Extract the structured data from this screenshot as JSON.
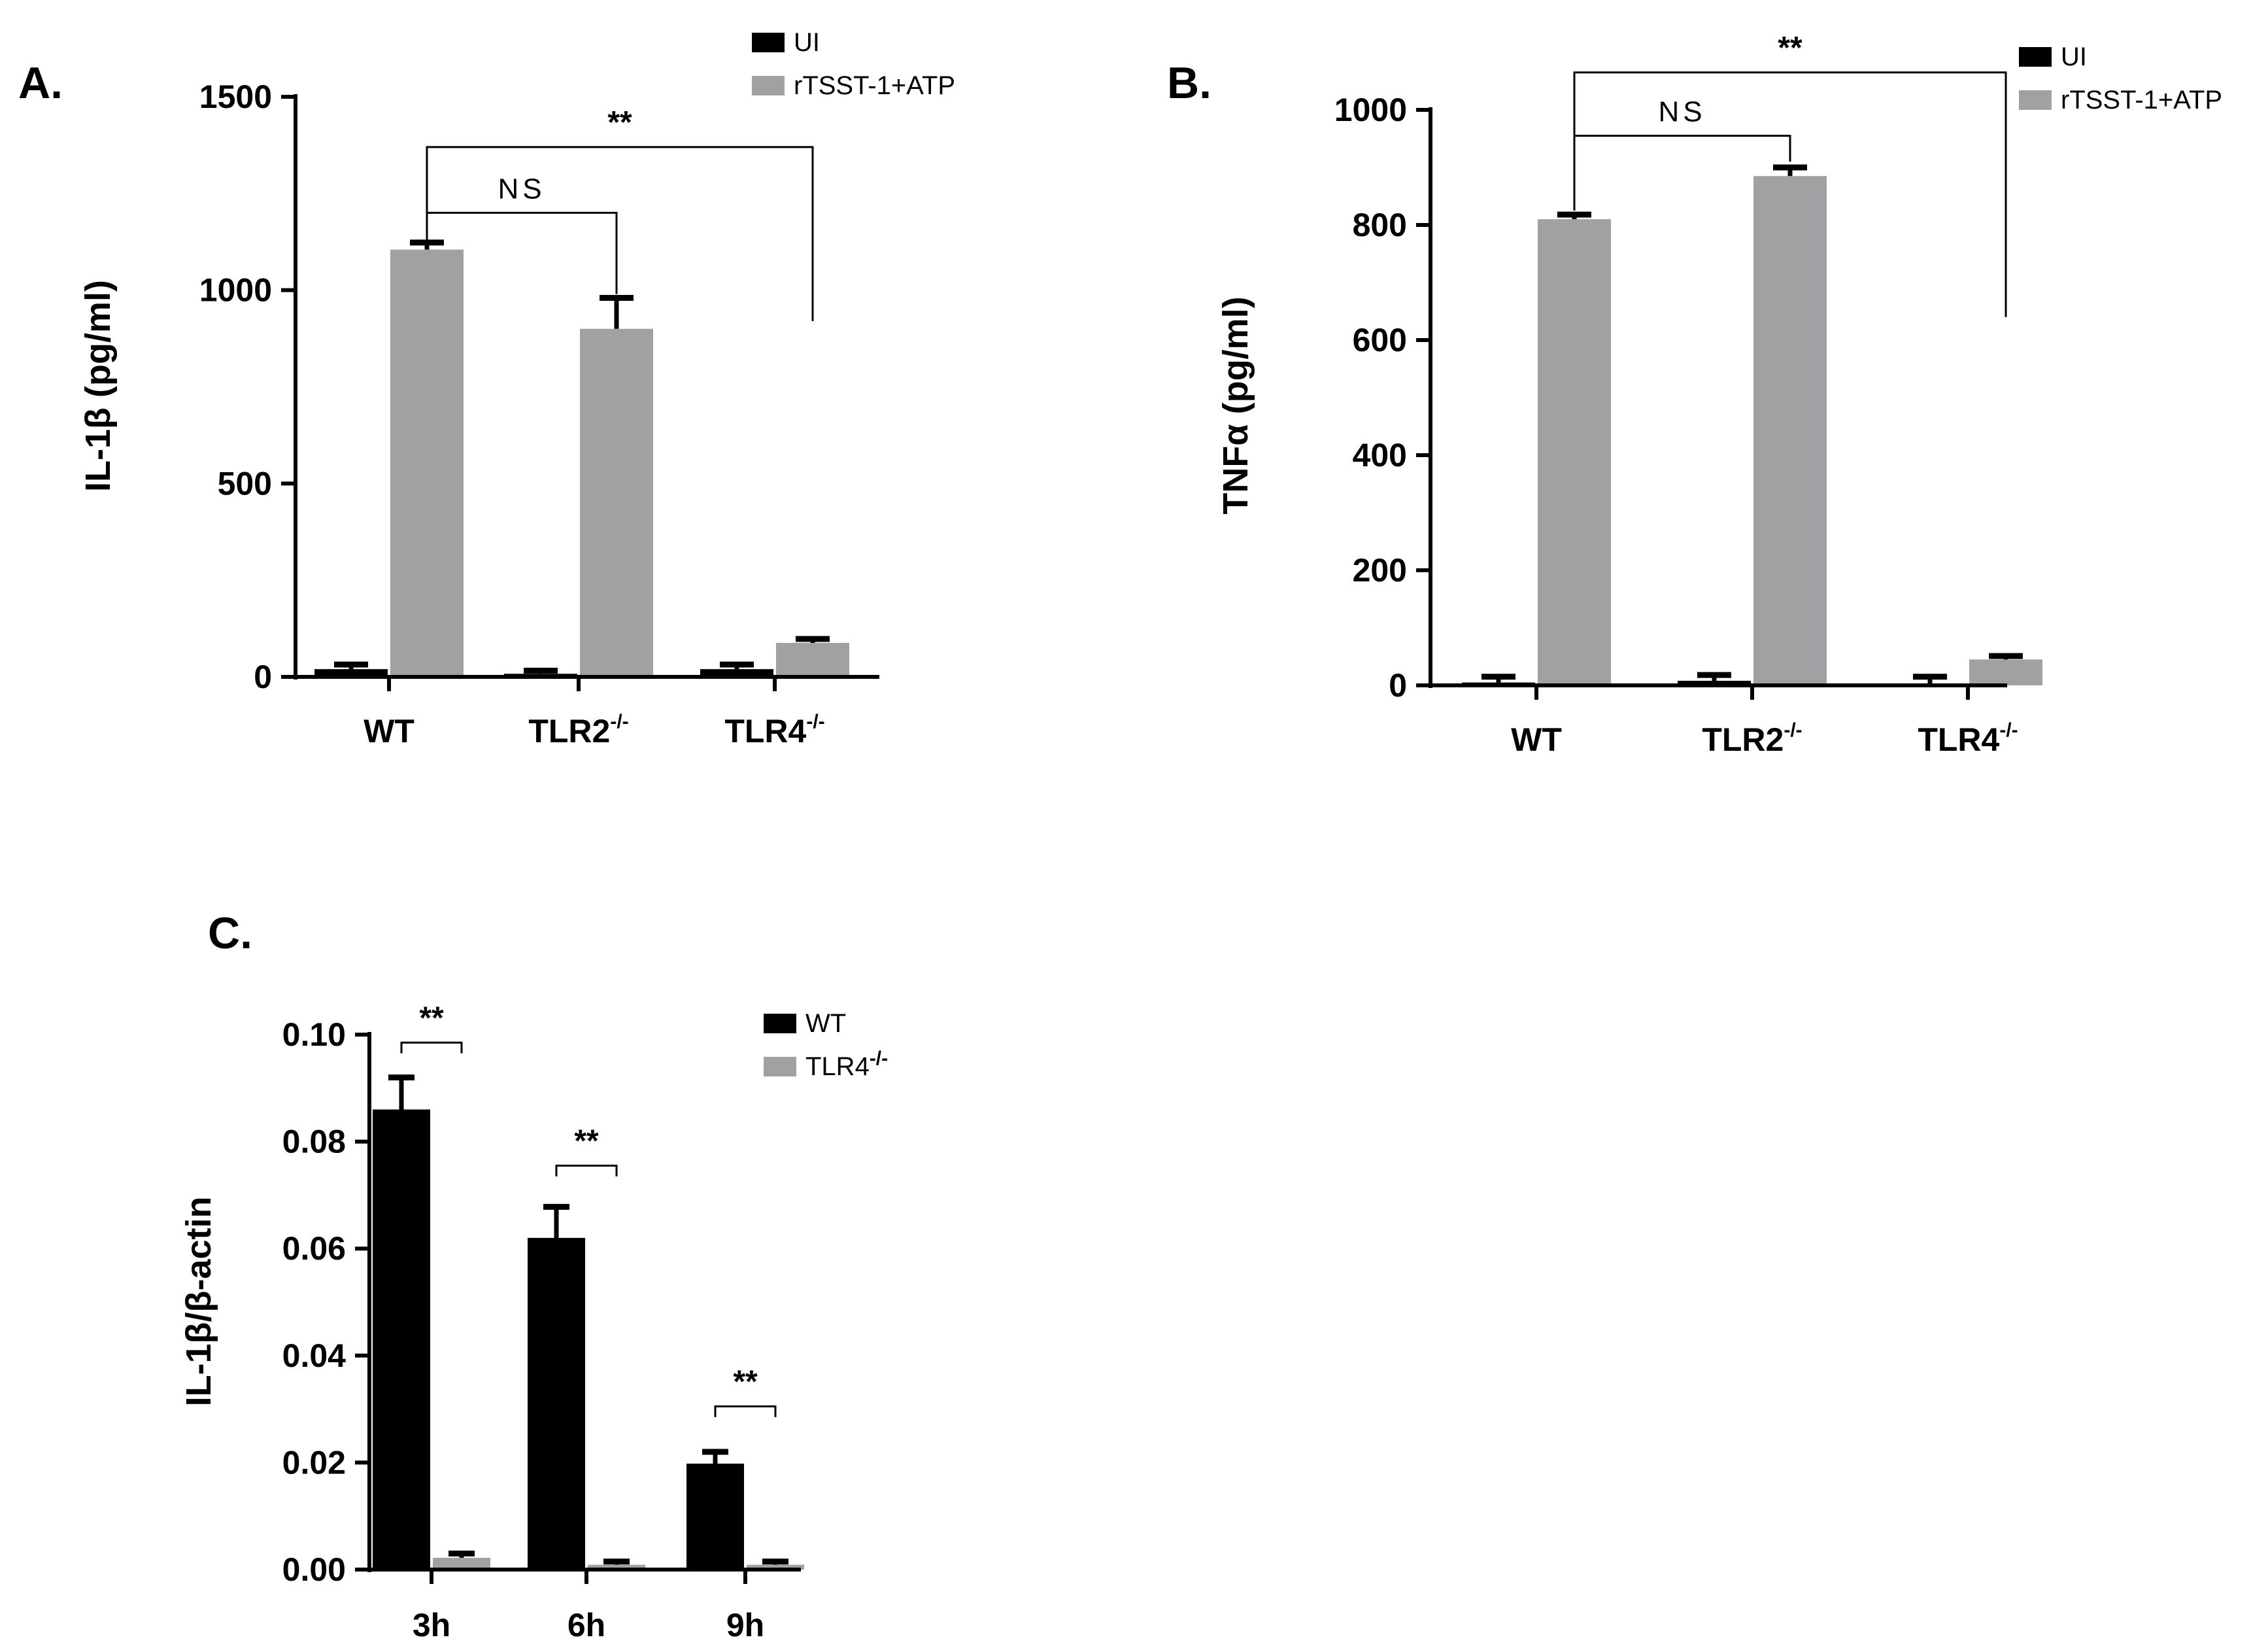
{
  "chart_data": [
    {
      "panel": "A.",
      "type": "bar",
      "ylabel": "IL-1β (pg/ml)",
      "ylim": [
        0,
        1500
      ],
      "yticks": [
        0,
        500,
        1000,
        1500
      ],
      "categories": [
        {
          "base": "WT",
          "sup": ""
        },
        {
          "base": "TLR2",
          "sup": "-/-"
        },
        {
          "base": "TLR4",
          "sup": "-/-"
        }
      ],
      "series": [
        {
          "name": "UI",
          "color": "#000000",
          "values": [
            20,
            8,
            20
          ],
          "errors": [
            12,
            8,
            12
          ]
        },
        {
          "name": "rTSST-1+ATP",
          "color": "#a1a1a4",
          "values": [
            1105,
            900,
            88
          ],
          "errors": [
            18,
            80,
            10
          ]
        }
      ],
      "brackets": [
        {
          "label": "NS",
          "from": [
            0,
            1
          ],
          "to": [
            1,
            1
          ],
          "y": 1200,
          "drop_to": [
            1125,
            990
          ]
        },
        {
          "label": "**",
          "from": [
            0,
            1
          ],
          "to": [
            2,
            1
          ],
          "y": 1370,
          "drop_to": [
            1125,
            920
          ]
        }
      ]
    },
    {
      "panel": "B.",
      "type": "bar",
      "ylabel": "TNFα (pg/ml)",
      "ylim": [
        0,
        1000
      ],
      "yticks": [
        0,
        200,
        400,
        600,
        800,
        1000
      ],
      "categories": [
        {
          "base": "WT",
          "sup": ""
        },
        {
          "base": "TLR2",
          "sup": "-/-"
        },
        {
          "base": "TLR4",
          "sup": "-/-"
        }
      ],
      "series": [
        {
          "name": "UI",
          "color": "#000000",
          "values": [
            5,
            8,
            0
          ],
          "errors": [
            10,
            10,
            15
          ]
        },
        {
          "name": "rTSST-1+ATP",
          "color": "#a1a1a4",
          "values": [
            810,
            885,
            45
          ],
          "errors": [
            8,
            15,
            6
          ]
        }
      ],
      "brackets": [
        {
          "label": "NS",
          "from": [
            0,
            1
          ],
          "to": [
            1,
            1
          ],
          "y": 955,
          "drop_to": [
            825,
            910
          ]
        },
        {
          "label": "**",
          "from": [
            0,
            1
          ],
          "to": [
            2,
            1
          ],
          "y": 1065,
          "drop_to": [
            825,
            640
          ]
        }
      ]
    },
    {
      "panel": "C.",
      "type": "bar",
      "ylabel": "IL-1β/β-actin",
      "ylim": [
        0,
        0.1
      ],
      "yticks": [
        "0.00",
        "0.02",
        "0.04",
        "0.06",
        "0.08",
        "0.10"
      ],
      "categories": [
        {
          "base": "3h",
          "sup": ""
        },
        {
          "base": "6h",
          "sup": ""
        },
        {
          "base": "9h",
          "sup": ""
        }
      ],
      "series": [
        {
          "name": "WT",
          "color": "#000000",
          "values": [
            0.086,
            0.062,
            0.0198
          ],
          "errors": [
            0.006,
            0.0058,
            0.0022
          ]
        },
        {
          "name": "TLR4",
          "sup": "-/-",
          "color": "#a1a1a4",
          "values": [
            0.0022,
            0.0009,
            0.0009
          ],
          "errors": [
            0.0008,
            0.0006,
            0.0006
          ]
        }
      ],
      "brackets": [
        {
          "label": "**",
          "group": 0,
          "y": 0.0985,
          "drop_to": [
            0.0965,
            0.0965
          ]
        },
        {
          "label": "**",
          "group": 1,
          "y": 0.0755,
          "drop_to": [
            0.0735,
            0.0735
          ]
        },
        {
          "label": "**",
          "group": 2,
          "y": 0.0305,
          "drop_to": [
            0.0285,
            0.0285
          ]
        }
      ]
    }
  ]
}
